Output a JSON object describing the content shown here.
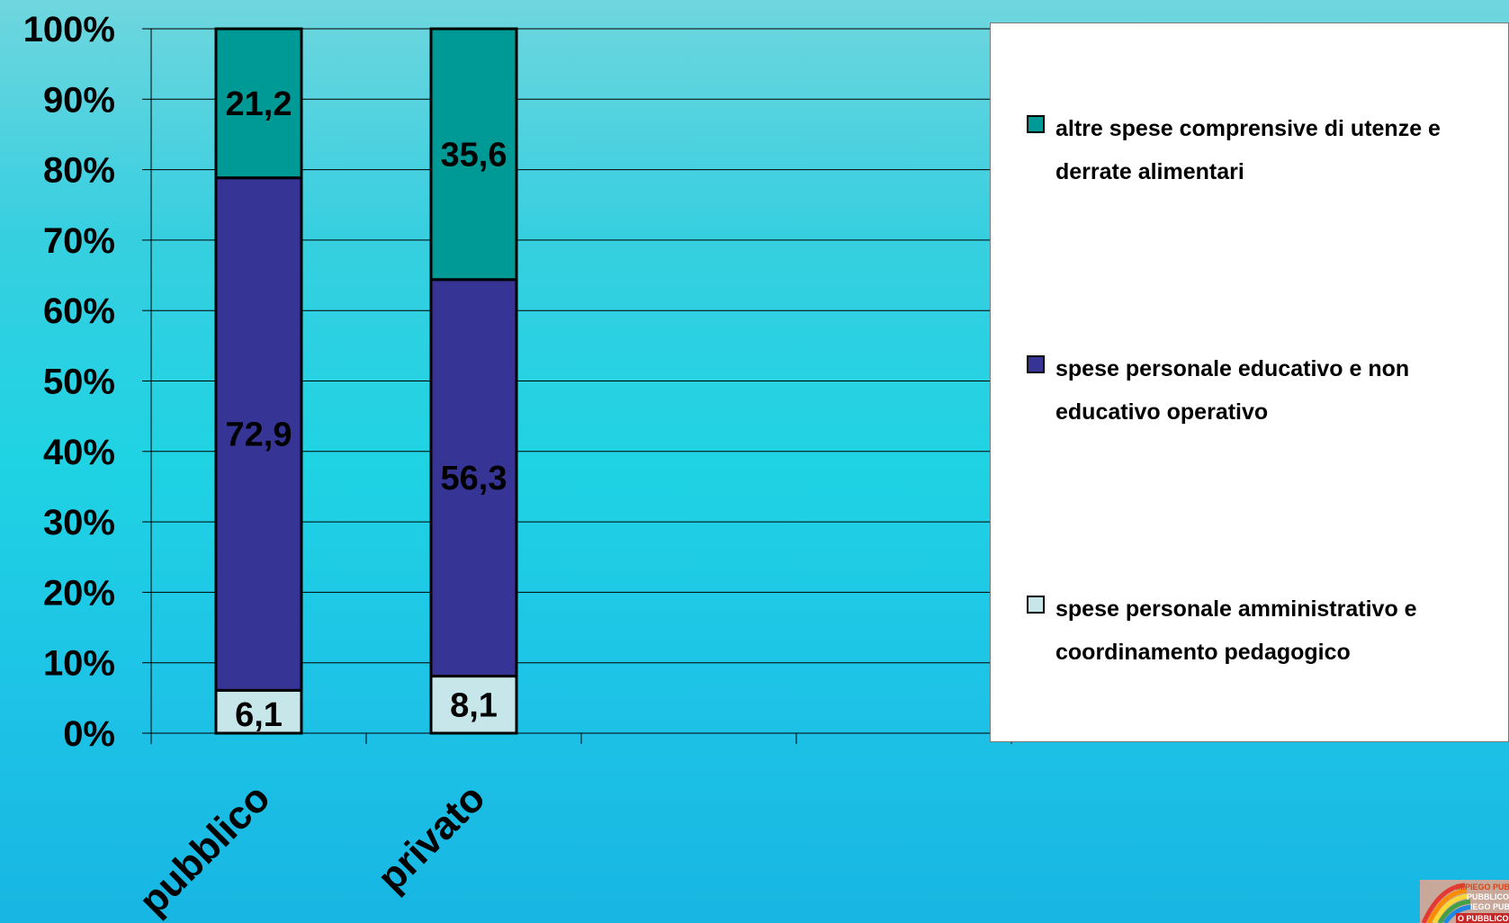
{
  "chart_data": {
    "type": "bar",
    "stacked": true,
    "percent_stacked": true,
    "categories": [
      "pubblico",
      "privato"
    ],
    "series": [
      {
        "name": "spese personale amministrativo e coordinamento pedagogico",
        "values": [
          6.1,
          8.1
        ],
        "labels": [
          "6,1",
          "8,1"
        ],
        "color": "#c6e6ea"
      },
      {
        "name": "spese personale educativo e non educativo operativo",
        "values": [
          72.9,
          56.3
        ],
        "labels": [
          "72,9",
          "56,3"
        ],
        "color": "#363596"
      },
      {
        "name": "altre spese comprensive di utenze e derrate alimentari",
        "values": [
          21.2,
          35.6
        ],
        "labels": [
          "21,2",
          "35,6"
        ],
        "color": "#009a96"
      }
    ],
    "yticks": [
      "0%",
      "10%",
      "20%",
      "30%",
      "40%",
      "50%",
      "60%",
      "70%",
      "80%",
      "90%",
      "100%"
    ],
    "ylim": [
      0,
      100
    ],
    "grid": true,
    "legend_position": "right"
  },
  "legend": {
    "items": [
      {
        "label": "altre spese comprensive di utenze e derrate alimentari",
        "color": "#009a96"
      },
      {
        "label": "spese personale educativo e non educativo operativo",
        "color": "#363596"
      },
      {
        "label": "spese personale amministrativo e coordinamento pedagogico",
        "color": "#c6e6ea"
      }
    ]
  },
  "logo": {
    "lines": [
      "IMPIEGO PUB",
      "PUBBLICO",
      "IEGO PUB",
      "O PUBBLICO I"
    ]
  }
}
